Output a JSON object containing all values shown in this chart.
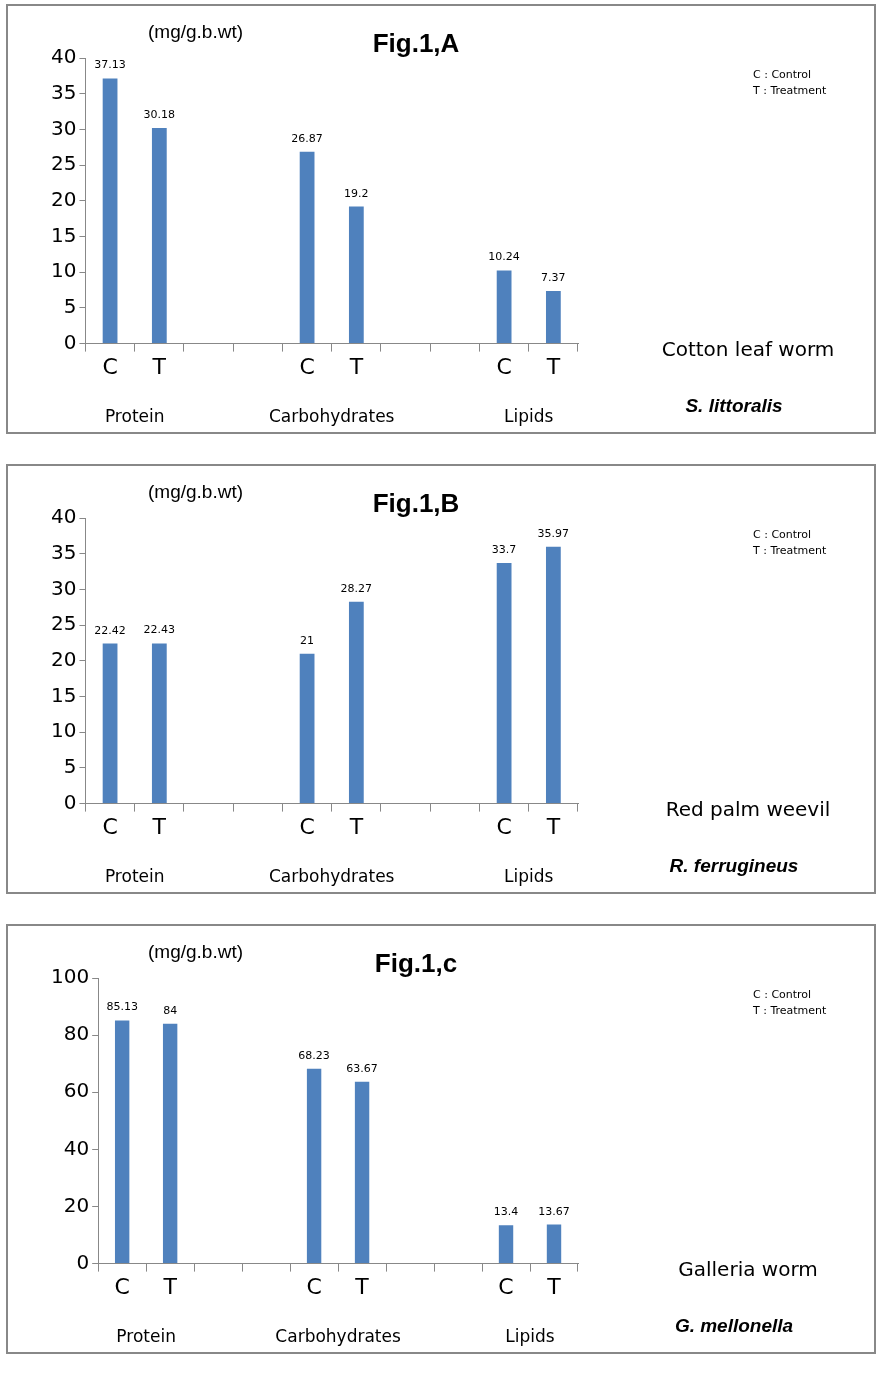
{
  "chart_data": [
    {
      "type": "bar",
      "title": "Fig.1,A",
      "ylabel": "(mg/g.b.wt)",
      "categories": [
        "C",
        "T",
        null,
        null,
        "C",
        "T",
        null,
        null,
        "C",
        "T"
      ],
      "values": [
        37.13,
        30.18,
        null,
        null,
        26.87,
        19.2,
        null,
        null,
        10.24,
        7.37
      ],
      "color": "#4f81bd",
      "ylim": [
        0,
        40
      ],
      "yticks": [
        0,
        5,
        10,
        15,
        20,
        25,
        30,
        35,
        40
      ],
      "grid": false,
      "data_labels": true,
      "annotations": [
        "Protein",
        "Carbohydrates",
        "Lipids",
        "C : Control",
        "T : Treatment",
        "Cotton leaf worm",
        "S. littoralis"
      ]
    },
    {
      "type": "bar",
      "title": "Fig.1,B",
      "ylabel": "(mg/g.b.wt)",
      "categories": [
        "C",
        "T",
        null,
        null,
        "C",
        "T",
        null,
        null,
        "C",
        "T"
      ],
      "values": [
        22.42,
        22.43,
        null,
        null,
        21,
        28.27,
        null,
        null,
        33.7,
        35.97
      ],
      "color": "#4f81bd",
      "ylim": [
        0,
        40
      ],
      "yticks": [
        0,
        5,
        10,
        15,
        20,
        25,
        30,
        35,
        40
      ],
      "grid": false,
      "data_labels": true,
      "annotations": [
        "Protein",
        "Carbohydrates",
        "Lipids",
        "C : Control",
        "T : Treatment",
        "Red palm weevil",
        "R. ferrugineus"
      ]
    },
    {
      "type": "bar",
      "title": "Fig.1,c",
      "ylabel": "(mg/g.b.wt)",
      "categories": [
        "C",
        "T",
        null,
        null,
        "C",
        "T",
        null,
        null,
        "C",
        "T"
      ],
      "values": [
        85.13,
        84,
        null,
        null,
        68.23,
        63.67,
        null,
        null,
        13.4,
        13.67
      ],
      "color": "#4f81bd",
      "ylim": [
        0,
        100
      ],
      "yticks": [
        0,
        20,
        40,
        60,
        80,
        100
      ],
      "grid": false,
      "data_labels": true,
      "annotations": [
        "Protein",
        "Carbohydrates",
        "Lipids",
        "C : Control",
        "T : Treatment",
        "Galleria worm",
        "G. mellonella"
      ]
    }
  ]
}
